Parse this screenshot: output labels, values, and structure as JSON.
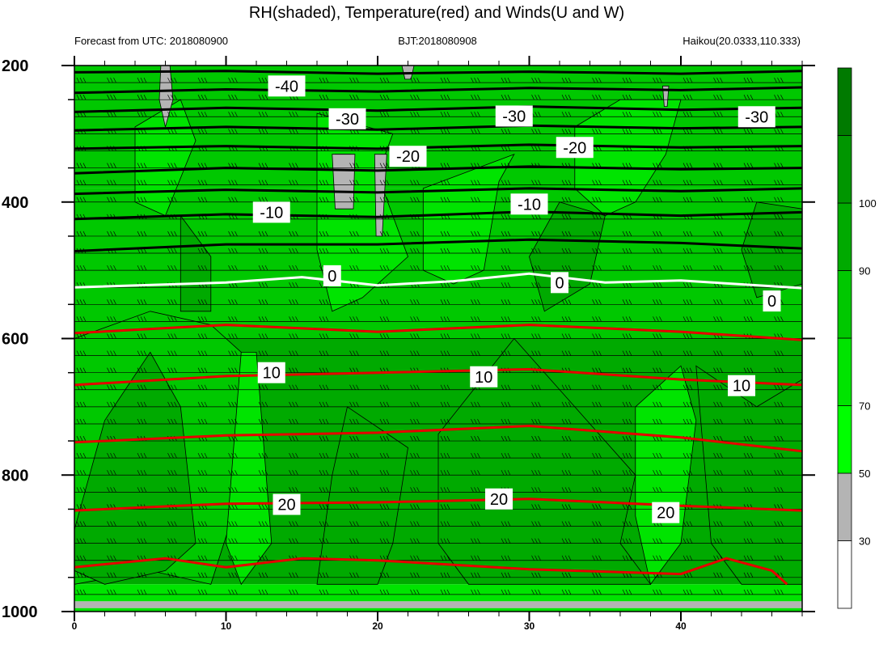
{
  "chart_data": {
    "type": "heatmap",
    "title": "RH(shaded), Temperature(red) and Winds(U and W)",
    "subtitle_left": "Forecast from UTC: 2018080900",
    "subtitle_center": "BJT:2018080908",
    "subtitle_right": "Haikou(20.0333,110.333)",
    "xlabel": "",
    "ylabel": "",
    "xlim": [
      0,
      48
    ],
    "ylim": [
      1000,
      200
    ],
    "x_ticks": [
      "0",
      "10",
      "20",
      "30",
      "40"
    ],
    "y_ticks": [
      "200",
      "400",
      "600",
      "800",
      "1000"
    ],
    "colorbar": {
      "tick_labels": [
        "30",
        "50",
        "70",
        "90",
        "100"
      ],
      "levels": [
        0,
        30,
        50,
        70,
        80,
        90,
        100,
        110
      ],
      "colors": [
        "#ffffff",
        "#b4b4b4",
        "#00ff00",
        "#00e400",
        "#00c800",
        "#00aa00",
        "#009600",
        "#007a00"
      ]
    },
    "rh_background": [
      {
        "p_top": 200,
        "p_bottom": 380,
        "rh": 85
      },
      {
        "p_top": 380,
        "p_bottom": 600,
        "rh": 85
      },
      {
        "p_top": 600,
        "p_bottom": 960,
        "rh": 90
      },
      {
        "p_top": 960,
        "p_bottom": 985,
        "rh": 75
      },
      {
        "p_top": 985,
        "p_bottom": 995,
        "rh": 40
      },
      {
        "p_top": 995,
        "p_bottom": 1000,
        "rh": 75
      }
    ],
    "rh_regions": [
      {
        "rh": 75,
        "points": [
          [
            4,
            290
          ],
          [
            7,
            250
          ],
          [
            8,
            310
          ],
          [
            6,
            420
          ],
          [
            4,
            400
          ]
        ]
      },
      {
        "rh": 75,
        "points": [
          [
            16,
            270
          ],
          [
            21,
            300
          ],
          [
            20,
            360
          ],
          [
            22,
            480
          ],
          [
            19,
            540
          ],
          [
            17,
            560
          ],
          [
            16,
            470
          ],
          [
            16,
            380
          ]
        ]
      },
      {
        "rh": 75,
        "points": [
          [
            33,
            290
          ],
          [
            36,
            250
          ],
          [
            40,
            250
          ],
          [
            39,
            330
          ],
          [
            37,
            400
          ],
          [
            35,
            420
          ],
          [
            33,
            380
          ]
        ]
      },
      {
        "rh": 75,
        "points": [
          [
            23,
            380
          ],
          [
            29,
            330
          ],
          [
            28,
            370
          ],
          [
            27,
            500
          ],
          [
            25,
            520
          ],
          [
            23,
            500
          ]
        ]
      },
      {
        "rh": 85,
        "points": [
          [
            0,
            600
          ],
          [
            5,
            560
          ],
          [
            9,
            580
          ],
          [
            11,
            620
          ],
          [
            11,
            820
          ],
          [
            9,
            960
          ],
          [
            5,
            940
          ],
          [
            0,
            960
          ],
          [
            0,
            880
          ]
        ]
      },
      {
        "rh": 95,
        "points": [
          [
            2,
            720
          ],
          [
            5,
            620
          ],
          [
            7,
            700
          ],
          [
            8,
            900
          ],
          [
            6,
            940
          ],
          [
            2,
            960
          ],
          [
            0,
            940
          ],
          [
            0,
            880
          ]
        ]
      },
      {
        "rh": 95,
        "points": [
          [
            18,
            700
          ],
          [
            22,
            760
          ],
          [
            21,
            900
          ],
          [
            20,
            960
          ],
          [
            16,
            960
          ],
          [
            17,
            800
          ]
        ]
      },
      {
        "rh": 95,
        "points": [
          [
            24,
            740
          ],
          [
            29,
            600
          ],
          [
            33,
            700
          ],
          [
            37,
            800
          ],
          [
            36,
            900
          ],
          [
            38,
            960
          ],
          [
            33,
            960
          ],
          [
            29,
            960
          ],
          [
            26,
            960
          ],
          [
            24,
            900
          ]
        ]
      },
      {
        "rh": 95,
        "points": [
          [
            41,
            640
          ],
          [
            45,
            700
          ],
          [
            48,
            660
          ],
          [
            48,
            960
          ],
          [
            44,
            960
          ],
          [
            42,
            900
          ]
        ]
      },
      {
        "rh": 95,
        "points": [
          [
            7,
            420
          ],
          [
            9,
            480
          ],
          [
            9,
            560
          ],
          [
            7,
            560
          ]
        ]
      },
      {
        "rh": 95,
        "points": [
          [
            32,
            400
          ],
          [
            35,
            420
          ],
          [
            34,
            520
          ],
          [
            31,
            560
          ],
          [
            30,
            480
          ]
        ]
      },
      {
        "rh": 95,
        "points": [
          [
            45,
            400
          ],
          [
            48,
            410
          ],
          [
            48,
            520
          ],
          [
            45,
            540
          ],
          [
            44,
            470
          ]
        ]
      },
      {
        "rh": 70,
        "points": [
          [
            11,
            620
          ],
          [
            12,
            620
          ],
          [
            13,
            900
          ],
          [
            11,
            960
          ],
          [
            10,
            900
          ]
        ]
      },
      {
        "rh": 70,
        "points": [
          [
            37,
            700
          ],
          [
            40,
            640
          ],
          [
            41,
            720
          ],
          [
            40,
            900
          ],
          [
            38,
            960
          ],
          [
            37,
            860
          ]
        ]
      },
      {
        "rh": 65,
        "points": [
          [
            17.2,
            330
          ],
          [
            18.2,
            330
          ],
          [
            18.2,
            390
          ],
          [
            17.2,
            390
          ]
        ]
      },
      {
        "rh": 45,
        "points": [
          [
            5.7,
            200
          ],
          [
            6.3,
            200
          ],
          [
            6.5,
            250
          ],
          [
            6,
            290
          ],
          [
            5.6,
            250
          ]
        ]
      },
      {
        "rh": 45,
        "points": [
          [
            21.6,
            200
          ],
          [
            22.4,
            200
          ],
          [
            22.2,
            220
          ],
          [
            21.8,
            220
          ]
        ]
      },
      {
        "rh": 45,
        "points": [
          [
            17,
            330
          ],
          [
            18.5,
            330
          ],
          [
            18.4,
            410
          ],
          [
            17.2,
            410
          ]
        ]
      },
      {
        "rh": 45,
        "points": [
          [
            19.8,
            330
          ],
          [
            20.6,
            330
          ],
          [
            20.3,
            450
          ],
          [
            19.9,
            450
          ]
        ]
      },
      {
        "rh": 45,
        "points": [
          [
            38.8,
            230
          ],
          [
            39.2,
            230
          ],
          [
            39.1,
            260
          ],
          [
            38.9,
            260
          ]
        ]
      }
    ],
    "temperature_contours": [
      {
        "label": "-40",
        "color": "#000000",
        "points": [
          [
            0,
            210
          ],
          [
            10,
            208
          ],
          [
            20,
            212
          ],
          [
            30,
            209
          ],
          [
            40,
            212
          ],
          [
            48,
            208
          ]
        ],
        "labels": [
          [
            14,
            230
          ]
        ]
      },
      {
        "label": "",
        "color": "#000000",
        "points": [
          [
            0,
            240
          ],
          [
            10,
            235
          ],
          [
            20,
            238
          ],
          [
            30,
            233
          ],
          [
            40,
            236
          ],
          [
            48,
            232
          ]
        ],
        "labels": []
      },
      {
        "label": "-30",
        "color": "#000000",
        "points": [
          [
            0,
            268
          ],
          [
            10,
            262
          ],
          [
            20,
            266
          ],
          [
            30,
            260
          ],
          [
            40,
            265
          ],
          [
            48,
            262
          ]
        ],
        "labels": [
          [
            18,
            278
          ],
          [
            29,
            274
          ],
          [
            45,
            275
          ]
        ]
      },
      {
        "label": "",
        "color": "#000000",
        "points": [
          [
            0,
            295
          ],
          [
            10,
            290
          ],
          [
            20,
            294
          ],
          [
            30,
            288
          ],
          [
            40,
            292
          ],
          [
            48,
            290
          ]
        ],
        "labels": []
      },
      {
        "label": "-20",
        "color": "#000000",
        "points": [
          [
            0,
            322
          ],
          [
            10,
            318
          ],
          [
            20,
            322
          ],
          [
            30,
            316
          ],
          [
            40,
            320
          ],
          [
            48,
            318
          ]
        ],
        "labels": [
          [
            22,
            333
          ],
          [
            33,
            320
          ]
        ]
      },
      {
        "label": "",
        "color": "#000000",
        "points": [
          [
            0,
            358
          ],
          [
            10,
            350
          ],
          [
            20,
            354
          ],
          [
            30,
            348
          ],
          [
            40,
            352
          ],
          [
            48,
            350
          ]
        ],
        "labels": []
      },
      {
        "label": "-10",
        "color": "#000000",
        "points": [
          [
            0,
            388
          ],
          [
            10,
            382
          ],
          [
            20,
            386
          ],
          [
            30,
            380
          ],
          [
            40,
            384
          ],
          [
            48,
            380
          ]
        ],
        "labels": [
          [
            13,
            415
          ],
          [
            30,
            403
          ]
        ]
      },
      {
        "label": "",
        "color": "#000000",
        "points": [
          [
            0,
            425
          ],
          [
            10,
            418
          ],
          [
            20,
            422
          ],
          [
            30,
            414
          ],
          [
            40,
            420
          ],
          [
            48,
            415
          ]
        ],
        "labels": []
      },
      {
        "label": "",
        "color": "#000000",
        "points": [
          [
            0,
            472
          ],
          [
            10,
            462
          ],
          [
            20,
            462
          ],
          [
            30,
            455
          ],
          [
            40,
            460
          ],
          [
            48,
            468
          ]
        ],
        "labels": []
      },
      {
        "label": "0",
        "color": "#ffffff",
        "points": [
          [
            0,
            525
          ],
          [
            10,
            518
          ],
          [
            15,
            510
          ],
          [
            20,
            522
          ],
          [
            25,
            516
          ],
          [
            30,
            505
          ],
          [
            35,
            518
          ],
          [
            40,
            515
          ],
          [
            48,
            526
          ]
        ],
        "labels": [
          [
            17,
            508
          ],
          [
            32,
            518
          ],
          [
            46,
            545
          ]
        ]
      },
      {
        "label": "",
        "color": "#e60000",
        "points": [
          [
            0,
            592
          ],
          [
            10,
            580
          ],
          [
            20,
            590
          ],
          [
            30,
            580
          ],
          [
            40,
            590
          ],
          [
            48,
            602
          ]
        ],
        "labels": []
      },
      {
        "label": "10",
        "color": "#e60000",
        "points": [
          [
            0,
            668
          ],
          [
            10,
            655
          ],
          [
            20,
            650
          ],
          [
            30,
            645
          ],
          [
            40,
            660
          ],
          [
            48,
            668
          ]
        ],
        "labels": [
          [
            13,
            650
          ],
          [
            27,
            656
          ],
          [
            44,
            669
          ]
        ]
      },
      {
        "label": "",
        "color": "#e60000",
        "points": [
          [
            0,
            752
          ],
          [
            10,
            742
          ],
          [
            20,
            738
          ],
          [
            30,
            728
          ],
          [
            40,
            745
          ],
          [
            48,
            765
          ]
        ],
        "labels": []
      },
      {
        "label": "20",
        "color": "#e60000",
        "points": [
          [
            0,
            852
          ],
          [
            10,
            842
          ],
          [
            20,
            840
          ],
          [
            30,
            835
          ],
          [
            40,
            845
          ],
          [
            48,
            852
          ]
        ],
        "labels": [
          [
            14,
            843
          ],
          [
            28,
            835
          ],
          [
            39,
            855
          ]
        ]
      },
      {
        "label": "",
        "color": "#e60000",
        "points": [
          [
            0,
            935
          ],
          [
            6,
            922
          ],
          [
            10,
            935
          ],
          [
            15,
            922
          ],
          [
            20,
            925
          ],
          [
            30,
            938
          ],
          [
            40,
            945
          ],
          [
            43,
            922
          ],
          [
            46,
            940
          ],
          [
            47,
            960
          ]
        ],
        "labels": []
      }
    ],
    "wind_barbs": {
      "x_start": 0,
      "x_end": 48,
      "x_step": 2,
      "levels": [
        200,
        225,
        250,
        275,
        300,
        325,
        350,
        375,
        400,
        425,
        450,
        475,
        500,
        525,
        550,
        575,
        600,
        625,
        650,
        675,
        700,
        725,
        750,
        775,
        800,
        825,
        850,
        875,
        900,
        925,
        950,
        975
      ]
    }
  }
}
